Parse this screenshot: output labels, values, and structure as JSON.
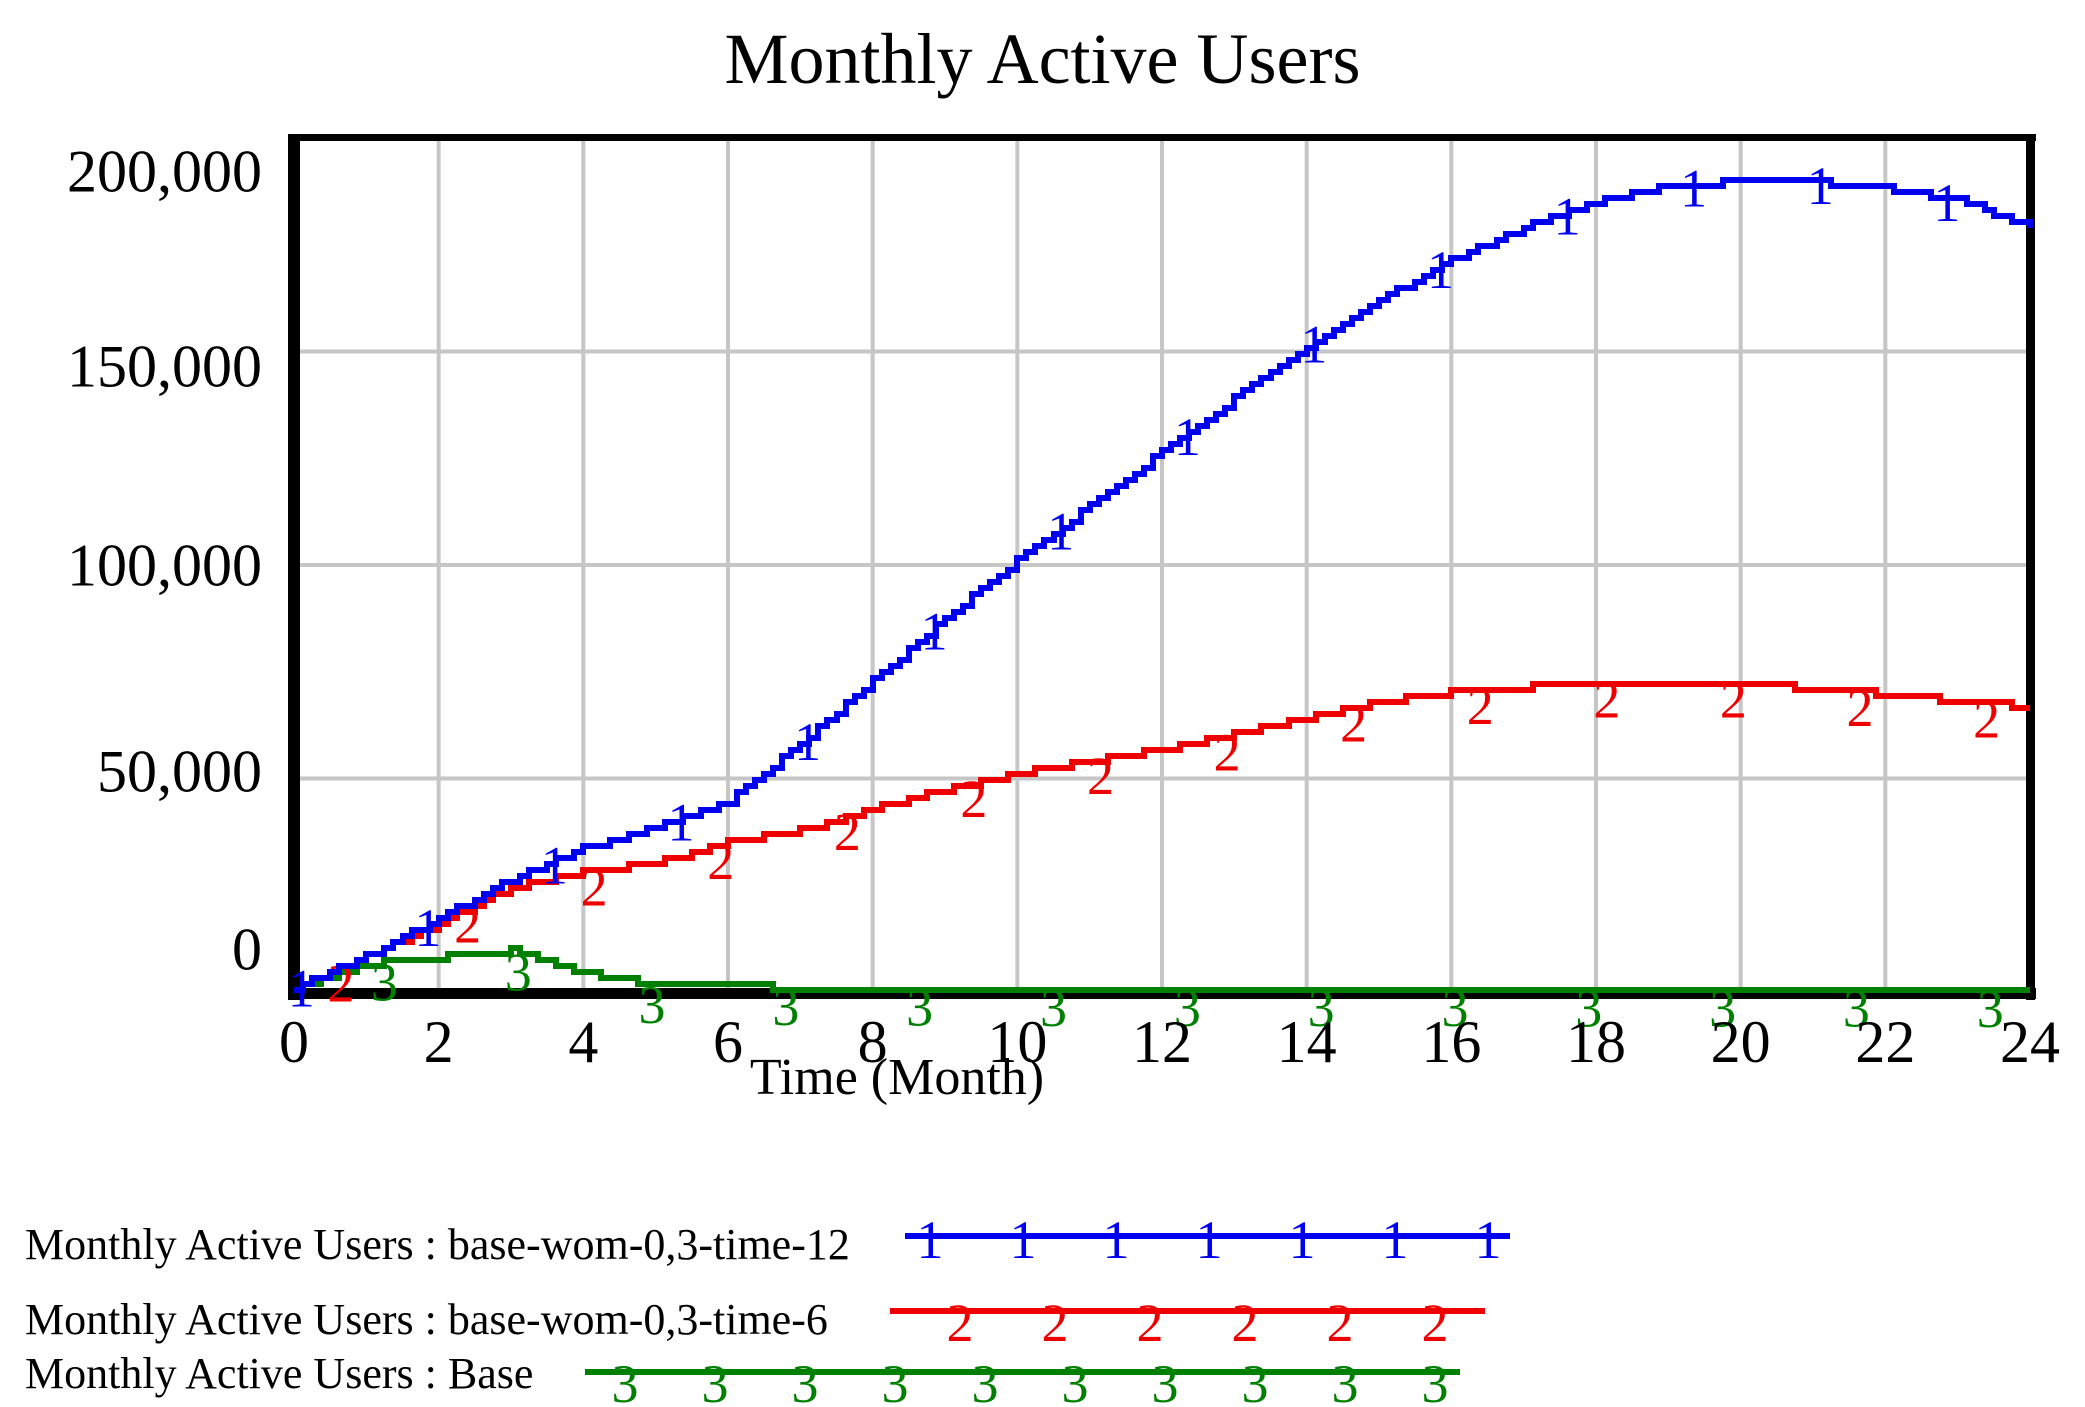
{
  "chart": {
    "title": "Monthly Active Users",
    "xlabel": "Time (Month)"
  },
  "chart_data": {
    "type": "line",
    "title": "Monthly Active Users",
    "xlabel": "Time (Month)",
    "xlim": [
      0,
      24
    ],
    "ylim": [
      0,
      200000
    ],
    "grid": true,
    "legend_position": "bottom-left",
    "xticks": [
      "0",
      "2",
      "4",
      "6",
      "8",
      "10",
      "12",
      "14",
      "16",
      "18",
      "20",
      "22",
      "24"
    ],
    "yticks": [
      {
        "label": "0",
        "value": 0
      },
      {
        "label": "50,000",
        "value": 50000
      },
      {
        "label": "100,000",
        "value": 100000
      },
      {
        "label": "150,000",
        "value": 150000
      },
      {
        "label": "200,000",
        "value": 200000
      }
    ],
    "x": [
      0,
      1,
      2,
      3,
      4,
      5,
      6,
      7,
      8,
      9,
      10,
      11,
      12,
      13,
      14,
      15,
      16,
      17,
      18,
      19,
      20,
      21,
      22,
      23,
      24
    ],
    "series": [
      {
        "name": "Monthly Active Users : base-wom-0,3-time-12",
        "marker": "1",
        "color": "#0000ee",
        "marker_start": 0.1,
        "marker_step": 1.75,
        "values": [
          1000,
          8500,
          17300,
          26200,
          33500,
          38500,
          44500,
          58000,
          73000,
          87500,
          101000,
          114000,
          126500,
          139000,
          151500,
          162000,
          171500,
          179000,
          185000,
          188800,
          189800,
          189800,
          188200,
          185300,
          179500
        ]
      },
      {
        "name": "Monthly Active Users : base-wom-0,3-time-6",
        "marker": "2",
        "color": "#ee0000",
        "marker_start": 0.65,
        "marker_step": 1.75,
        "values": [
          1000,
          8300,
          16200,
          24600,
          27900,
          30200,
          34900,
          37800,
          43000,
          47300,
          51300,
          53900,
          56700,
          60200,
          64400,
          67800,
          70300,
          71400,
          72200,
          72400,
          72200,
          71000,
          69800,
          68200,
          66700
        ]
      },
      {
        "name": "Monthly Active Users : Base",
        "marker": "3",
        "color": "#008000",
        "marker_start": 1.25,
        "marker_step": 1.85,
        "values": [
          1000,
          6500,
          8000,
          9800,
          4500,
          1500,
          1200,
          1150,
          1100,
          1050,
          1000,
          980,
          960,
          940,
          920,
          900,
          880,
          860,
          840,
          820,
          800,
          780,
          760,
          740,
          720
        ]
      }
    ]
  },
  "legend": {
    "items": [
      {
        "label": "Monthly Active Users : base-wom-0,3-time-12",
        "marker": "1",
        "color": "#0000ee"
      },
      {
        "label": "Monthly Active Users : base-wom-0,3-time-6",
        "marker": "2",
        "color": "#ee0000"
      },
      {
        "label": "Monthly Active Users : Base",
        "marker": "3",
        "color": "#008000"
      }
    ]
  },
  "colors": {
    "frame": "#000000",
    "gridline": "#c6c6c6",
    "background": "#ffffff"
  }
}
